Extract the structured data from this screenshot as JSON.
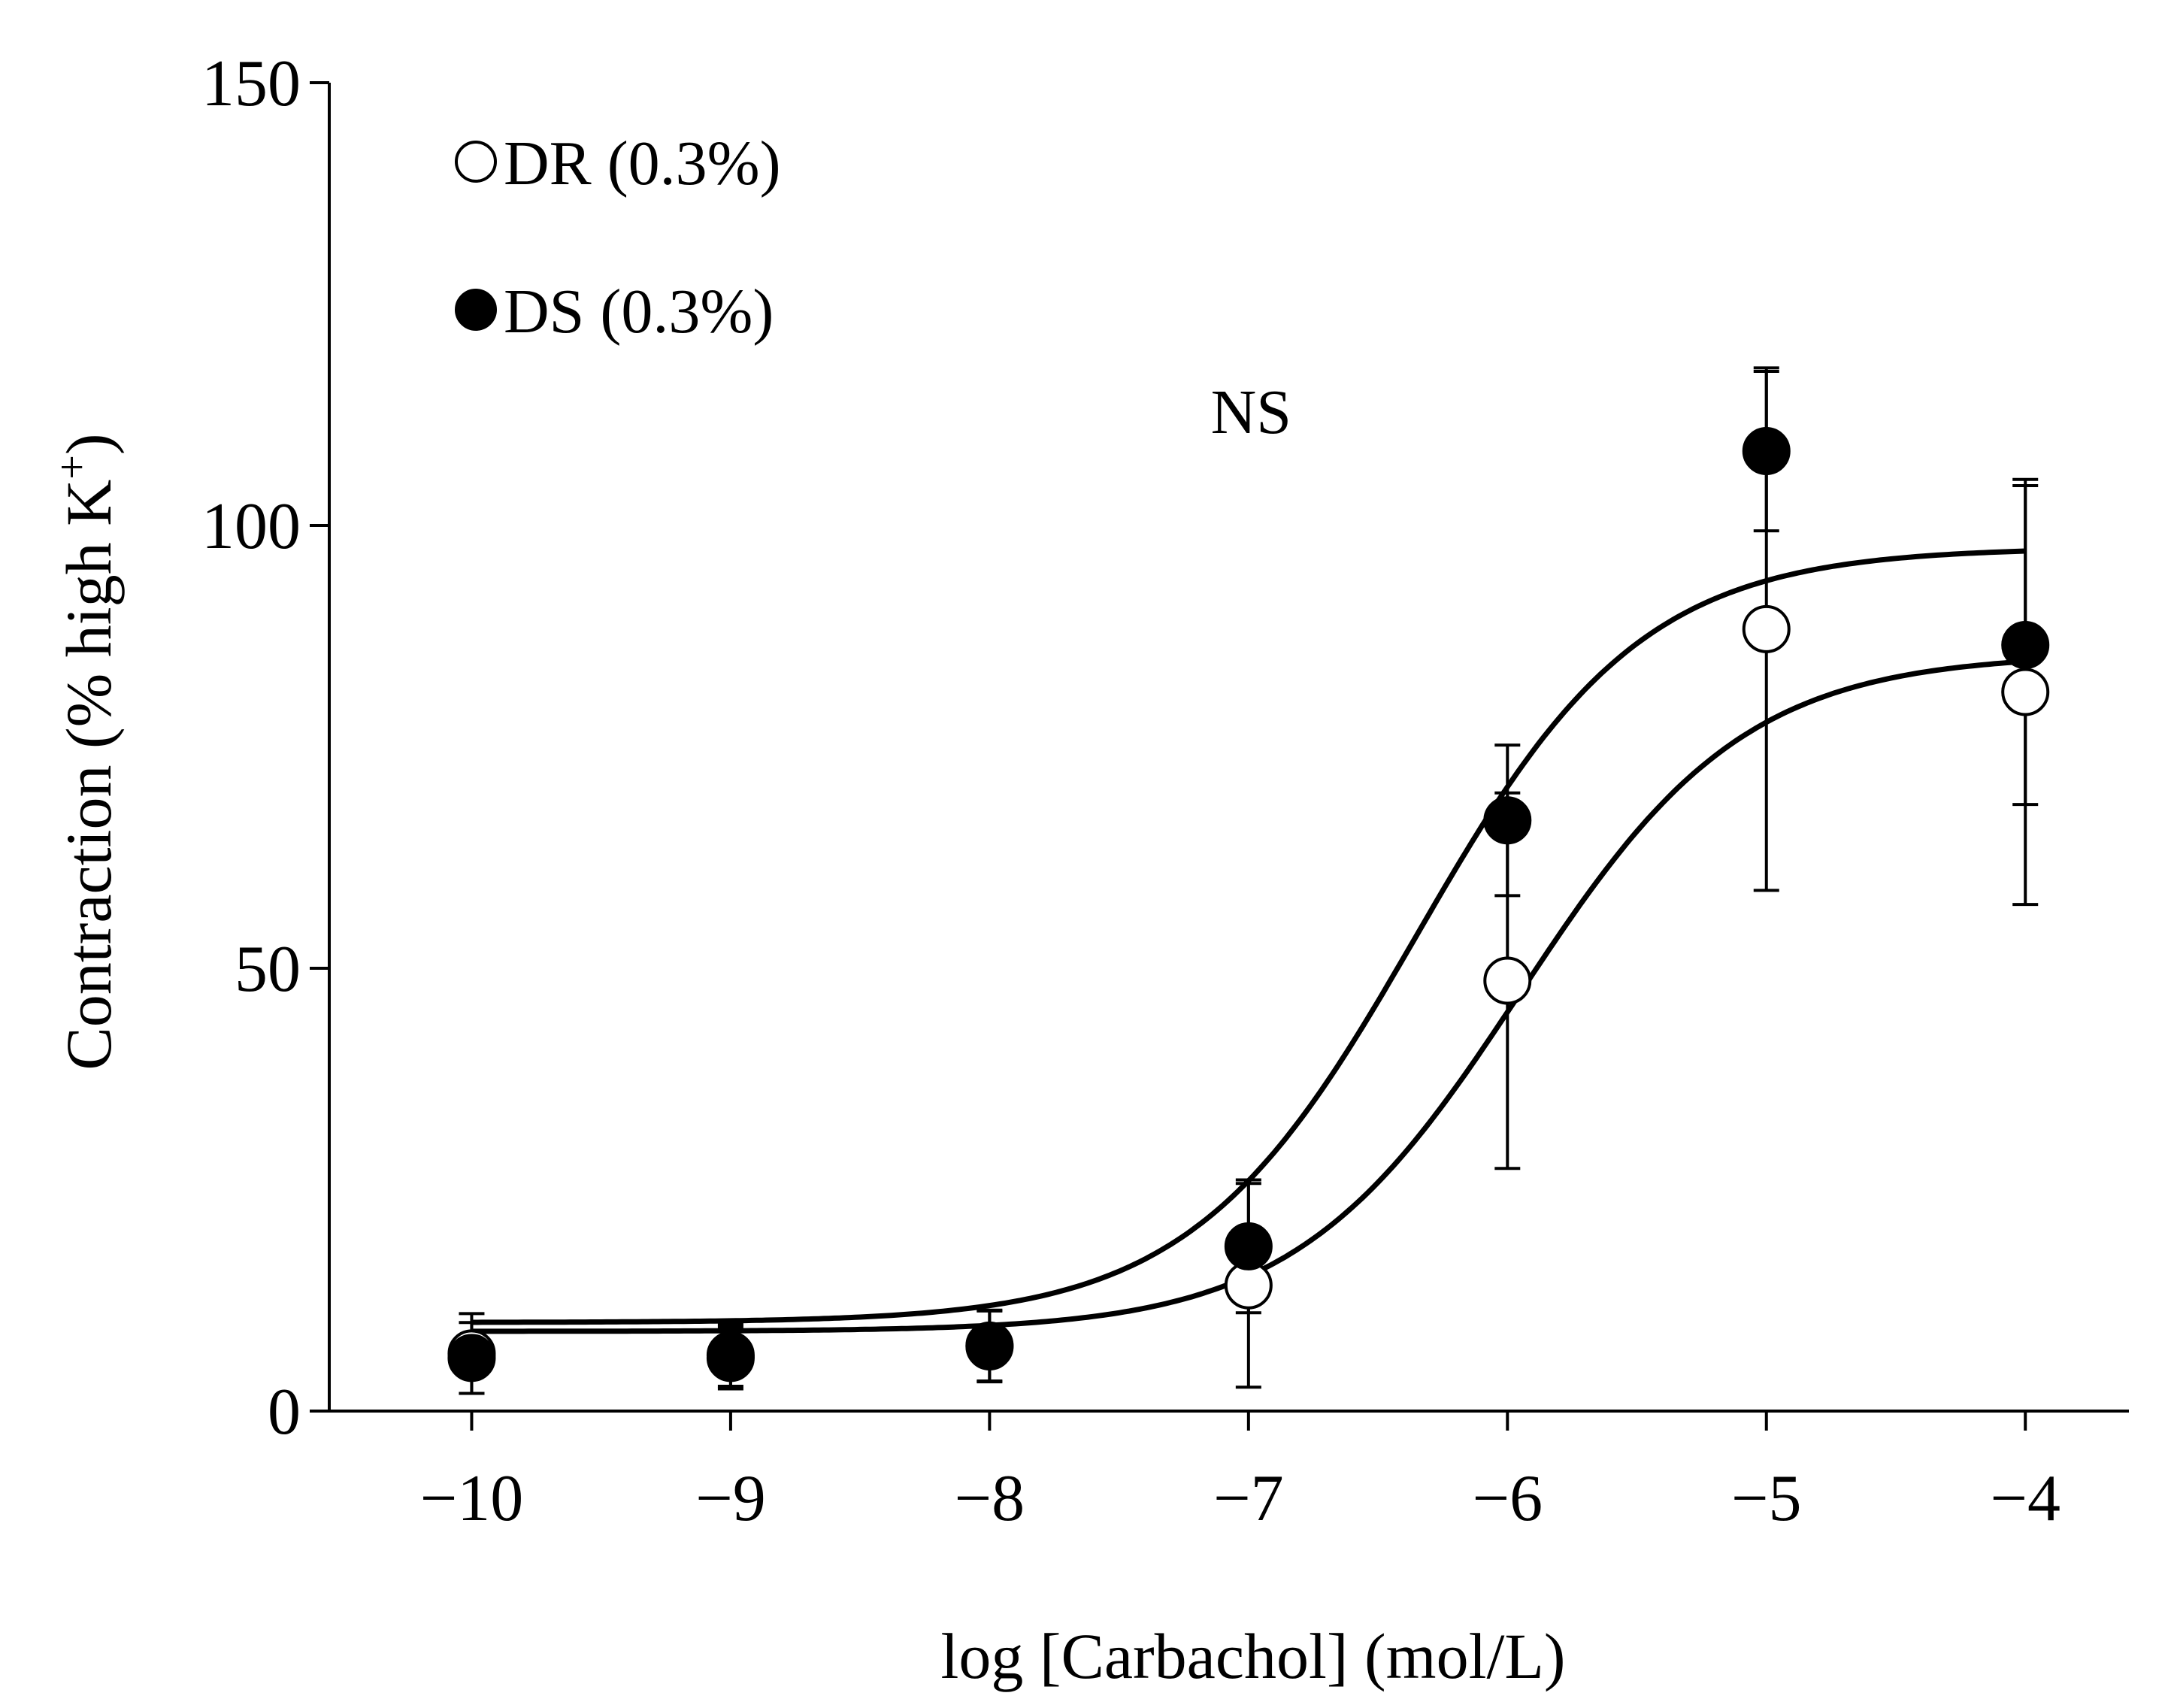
{
  "chart_data": {
    "type": "scatter",
    "title": "",
    "xlabel": "log [Carbachol] (mol/L)",
    "ylabel_main": "Contraction (% high K",
    "ylabel_sup": "+",
    "ylabel_close": ")",
    "xlim": [
      -10.55,
      -3.6
    ],
    "ylim": [
      0,
      150
    ],
    "x_ticks": [
      -10,
      -9,
      -8,
      -7,
      -6,
      -5,
      -4
    ],
    "x_tick_labels": [
      "−10",
      "−9",
      "−8",
      "−7",
      "−6",
      "−5",
      "−4"
    ],
    "y_ticks": [
      0,
      50,
      100,
      150
    ],
    "y_tick_labels": [
      "0",
      "50",
      "100",
      "150"
    ],
    "annotation": "NS",
    "annotation_pos": {
      "x": -6.99,
      "y": 113
    },
    "legend_position": "top-left",
    "series": [
      {
        "name": "DR (0.3%)",
        "marker": "open-circle",
        "x": [
          -10,
          -9,
          -8,
          -7,
          -6,
          -5,
          -4
        ],
        "y": [
          6.5,
          6.3,
          7.3,
          14.2,
          48.6,
          88.3,
          81.2
        ],
        "err": [
          4.5,
          3.5,
          4.0,
          11.5,
          21.2,
          29.5,
          24.0
        ],
        "fit": {
          "bottom": 9.0,
          "top": 85.5,
          "logEC50": -5.95,
          "hill": 1.0
        }
      },
      {
        "name": "DS (0.3%)",
        "marker": "filled-circle",
        "x": [
          -10,
          -9,
          -8,
          -7,
          -6,
          -5,
          -4
        ],
        "y": [
          6.0,
          6.0,
          7.4,
          18.6,
          66.7,
          108.4,
          86.5
        ],
        "err": [
          4.0,
          3.5,
          4.0,
          7.5,
          8.5,
          9.0,
          18.0
        ],
        "fit": {
          "bottom": 10.0,
          "top": 97.5,
          "logEC50": -6.35,
          "hill": 1.0
        }
      }
    ]
  }
}
